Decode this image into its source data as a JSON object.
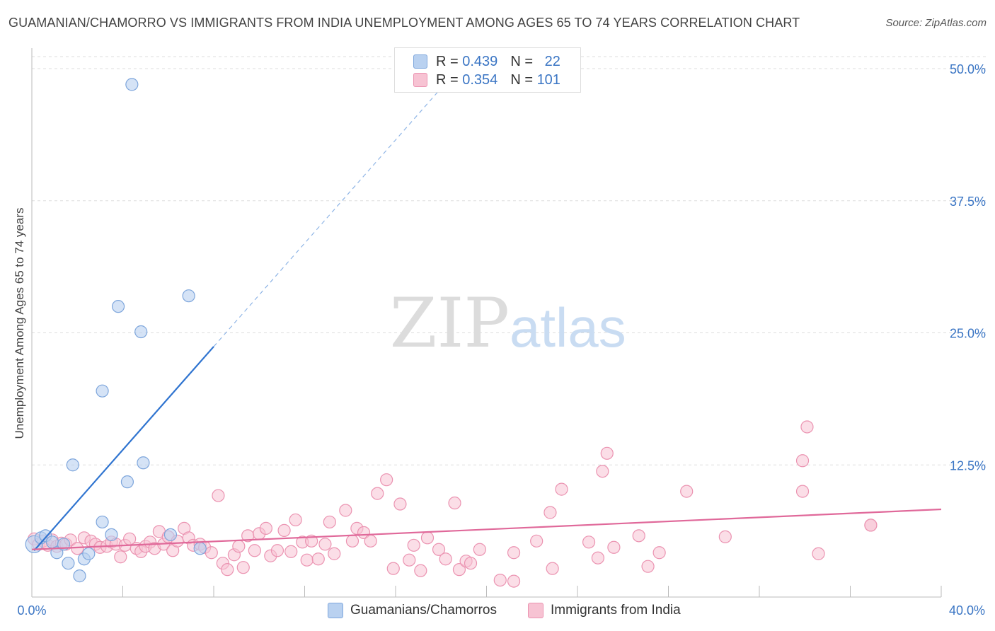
{
  "header": {
    "title": "GUAMANIAN/CHAMORRO VS IMMIGRANTS FROM INDIA UNEMPLOYMENT AMONG AGES 65 TO 74 YEARS CORRELATION CHART",
    "source": "Source: ZipAtlas.com"
  },
  "watermark": {
    "zip": "ZIP",
    "atlas": "atlas"
  },
  "legend_top": {
    "rows": [
      {
        "r_label": "R =",
        "r_value": "0.439",
        "n_label": "N =",
        "n_value": "22"
      },
      {
        "r_label": "R =",
        "r_value": "0.354",
        "n_label": "N =",
        "n_value": "101"
      }
    ]
  },
  "legend_bottom": {
    "items": [
      {
        "label": "Guamanians/Chamorros"
      },
      {
        "label": "Immigrants from India"
      }
    ]
  },
  "colors": {
    "blue_fill": "#b9d1f0",
    "blue_stroke": "#7ea6dc",
    "blue_line": "#2f74d0",
    "pink_fill": "#f7c3d3",
    "pink_stroke": "#eb93b1",
    "pink_line": "#e0699a",
    "grid": "#dddddd",
    "tick_label": "#3a75c4"
  },
  "chart_data": {
    "type": "scatter",
    "title": "GUAMANIAN/CHAMORRO VS IMMIGRANTS FROM INDIA UNEMPLOYMENT AMONG AGES 65 TO 74 YEARS CORRELATION CHART",
    "xlabel": "",
    "ylabel": "Unemployment Among Ages 65 to 74 years",
    "xlim": [
      0,
      40
    ],
    "ylim": [
      0,
      50
    ],
    "x_tick_labels": [
      "0.0%",
      "40.0%"
    ],
    "y_ticks": [
      12.5,
      25.0,
      37.5,
      50.0
    ],
    "y_tick_labels": [
      "12.5%",
      "25.0%",
      "37.5%",
      "50.0%"
    ],
    "series": [
      {
        "name": "Guamanians/Chamorros",
        "R": 0.439,
        "N": 22,
        "trend": {
          "x0": 0.1,
          "y0": 4.4,
          "x1": 8.0,
          "y1": 23.7,
          "dash_to_x": 17.9,
          "dash_to_y": 47.9
        },
        "points": [
          [
            0.1,
            5.0
          ],
          [
            0.4,
            5.6
          ],
          [
            0.6,
            5.8
          ],
          [
            0.9,
            5.2
          ],
          [
            1.1,
            4.2
          ],
          [
            1.4,
            5.0
          ],
          [
            1.6,
            3.2
          ],
          [
            1.8,
            12.5
          ],
          [
            2.1,
            2.0
          ],
          [
            2.3,
            3.6
          ],
          [
            2.5,
            4.1
          ],
          [
            3.1,
            19.5
          ],
          [
            3.1,
            7.1
          ],
          [
            3.5,
            5.9
          ],
          [
            3.8,
            27.5
          ],
          [
            4.2,
            10.9
          ],
          [
            4.4,
            48.5
          ],
          [
            4.8,
            25.1
          ],
          [
            4.9,
            12.7
          ],
          [
            6.1,
            5.9
          ],
          [
            6.9,
            28.5
          ],
          [
            7.4,
            4.6
          ]
        ]
      },
      {
        "name": "Immigrants from India",
        "R": 0.354,
        "N": 101,
        "trend": {
          "x0": 0.0,
          "y0": 4.5,
          "x1": 40.0,
          "y1": 8.3
        },
        "points": [
          [
            0.1,
            5.5
          ],
          [
            0.3,
            5.0
          ],
          [
            0.5,
            5.3
          ],
          [
            0.7,
            4.9
          ],
          [
            0.9,
            5.4
          ],
          [
            1.1,
            4.8
          ],
          [
            1.3,
            5.1
          ],
          [
            1.5,
            5.0
          ],
          [
            1.7,
            5.4
          ],
          [
            2.0,
            4.6
          ],
          [
            2.3,
            5.6
          ],
          [
            2.6,
            5.3
          ],
          [
            2.8,
            5.0
          ],
          [
            3.0,
            4.7
          ],
          [
            3.3,
            4.8
          ],
          [
            3.5,
            5.2
          ],
          [
            3.7,
            5.0
          ],
          [
            3.9,
            3.8
          ],
          [
            4.1,
            4.9
          ],
          [
            4.3,
            5.5
          ],
          [
            4.6,
            4.6
          ],
          [
            4.8,
            4.3
          ],
          [
            5.0,
            4.8
          ],
          [
            5.2,
            5.2
          ],
          [
            5.4,
            4.6
          ],
          [
            5.6,
            6.2
          ],
          [
            5.8,
            5.0
          ],
          [
            6.0,
            5.7
          ],
          [
            6.2,
            4.4
          ],
          [
            6.4,
            5.3
          ],
          [
            6.7,
            6.5
          ],
          [
            6.9,
            5.6
          ],
          [
            7.1,
            4.9
          ],
          [
            7.4,
            5.0
          ],
          [
            7.6,
            4.7
          ],
          [
            7.9,
            4.2
          ],
          [
            8.2,
            9.6
          ],
          [
            8.4,
            3.2
          ],
          [
            8.6,
            2.6
          ],
          [
            8.9,
            4.0
          ],
          [
            9.1,
            4.8
          ],
          [
            9.3,
            2.8
          ],
          [
            9.5,
            5.8
          ],
          [
            9.8,
            4.4
          ],
          [
            10.0,
            6.0
          ],
          [
            10.3,
            6.5
          ],
          [
            10.5,
            3.9
          ],
          [
            10.8,
            4.4
          ],
          [
            11.1,
            6.3
          ],
          [
            11.4,
            4.3
          ],
          [
            11.6,
            7.3
          ],
          [
            11.9,
            5.2
          ],
          [
            12.1,
            3.5
          ],
          [
            12.3,
            5.3
          ],
          [
            12.6,
            3.6
          ],
          [
            12.9,
            5.0
          ],
          [
            13.1,
            7.1
          ],
          [
            13.3,
            4.1
          ],
          [
            13.8,
            8.2
          ],
          [
            14.1,
            5.3
          ],
          [
            14.3,
            6.5
          ],
          [
            14.6,
            6.1
          ],
          [
            14.9,
            5.3
          ],
          [
            15.2,
            9.8
          ],
          [
            15.6,
            11.1
          ],
          [
            15.9,
            2.7
          ],
          [
            16.2,
            8.8
          ],
          [
            16.6,
            3.5
          ],
          [
            16.8,
            4.9
          ],
          [
            17.1,
            2.5
          ],
          [
            17.4,
            5.6
          ],
          [
            17.9,
            4.5
          ],
          [
            18.2,
            3.6
          ],
          [
            18.6,
            8.9
          ],
          [
            18.8,
            2.6
          ],
          [
            19.1,
            3.4
          ],
          [
            19.3,
            3.2
          ],
          [
            19.7,
            4.5
          ],
          [
            20.6,
            1.6
          ],
          [
            21.2,
            4.2
          ],
          [
            21.2,
            1.5
          ],
          [
            22.2,
            5.3
          ],
          [
            22.8,
            8.0
          ],
          [
            22.9,
            2.7
          ],
          [
            23.3,
            10.2
          ],
          [
            24.5,
            5.2
          ],
          [
            24.9,
            3.7
          ],
          [
            25.1,
            11.9
          ],
          [
            25.3,
            13.6
          ],
          [
            25.6,
            4.7
          ],
          [
            26.7,
            5.8
          ],
          [
            27.1,
            2.9
          ],
          [
            27.6,
            4.2
          ],
          [
            28.8,
            10.0
          ],
          [
            30.5,
            5.7
          ],
          [
            33.9,
            10.0
          ],
          [
            33.9,
            12.9
          ],
          [
            34.1,
            16.1
          ],
          [
            34.6,
            4.1
          ],
          [
            36.9,
            6.8
          ],
          [
            36.9,
            6.8
          ]
        ]
      }
    ]
  }
}
